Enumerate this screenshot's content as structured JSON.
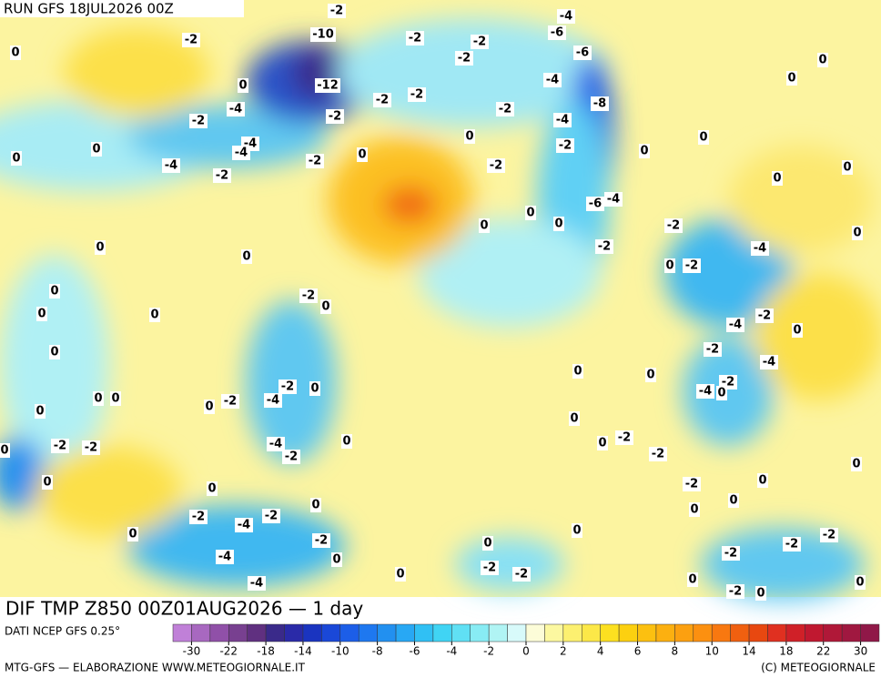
{
  "header": {
    "run": "RUN GFS 18JUL2026 00Z"
  },
  "map": {
    "title": "DIF TMP Z850 00Z01AUG2026 — 1 day",
    "labels": [
      -2,
      -2,
      0,
      -10,
      -2,
      -2,
      -4,
      -6,
      -6,
      -2,
      0,
      0,
      -12,
      -4,
      0,
      -2,
      -2,
      -4,
      -2,
      -2,
      -8,
      -2,
      -4,
      0,
      -4,
      -4,
      0,
      0,
      -2,
      0,
      0,
      0,
      -4,
      -2,
      -2,
      0,
      -2,
      0,
      -6,
      -4,
      0,
      0,
      0,
      -2,
      0,
      0,
      0,
      -2,
      -4,
      0,
      -2,
      0,
      -2,
      0,
      0,
      0,
      -4,
      -2,
      0,
      0,
      -2,
      -4,
      0,
      0,
      -2,
      0,
      -2,
      -4,
      0,
      0,
      0,
      -2,
      -4,
      0,
      0,
      0,
      0,
      -2,
      -4,
      0,
      0,
      -2,
      -2,
      -2,
      -2,
      0,
      0,
      0,
      -2,
      0,
      0,
      0,
      0,
      -2,
      -4,
      -2,
      0,
      0,
      -2,
      -2,
      -2,
      -4,
      0,
      0,
      -2,
      -2,
      -2,
      0,
      -4,
      0,
      0,
      -2,
      0
    ]
  },
  "legend": {
    "source": "DATI NCEP GFS 0.25°",
    "colors": [
      "#c080d8",
      "#a868c0",
      "#9050a8",
      "#784090",
      "#603080",
      "#3a2a8a",
      "#2a2aa8",
      "#1a34c0",
      "#1a48d8",
      "#1c5ee8",
      "#1e78f0",
      "#2290f0",
      "#28a8f4",
      "#30c0f4",
      "#40d4f4",
      "#60e0f4",
      "#88ecf4",
      "#b0f4f4",
      "#d8fafa",
      "#fcfcd8",
      "#fcf8a0",
      "#fcf070",
      "#fce848",
      "#fce020",
      "#fcd010",
      "#fcc010",
      "#fcb010",
      "#fca010",
      "#fc9010",
      "#f87810",
      "#f06010",
      "#e84810",
      "#e03020",
      "#d02028",
      "#c01830",
      "#b01838",
      "#a01840",
      "#901848"
    ],
    "ticks": [
      -30,
      -22,
      -18,
      -14,
      -10,
      -8,
      -6,
      -4,
      -2,
      0,
      2,
      4,
      6,
      8,
      10,
      14,
      18,
      22,
      30
    ]
  },
  "footer": {
    "left": "MTG-GFS — ELABORAZIONE WWW.METEOGIORNALE.IT",
    "right": "(C) METEOGIORNALE"
  }
}
